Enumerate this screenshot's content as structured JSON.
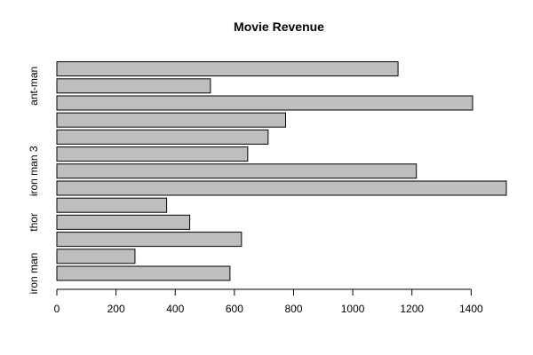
{
  "chart_data": {
    "type": "bar",
    "orientation": "horizontal",
    "title": "Movie Revenue",
    "xlabel": "",
    "ylabel": "",
    "xlim": [
      0,
      1519
    ],
    "x_ticks": [
      0,
      200,
      400,
      600,
      800,
      1000,
      1200,
      1400
    ],
    "bars": [
      {
        "label": "iron man",
        "value": 585
      },
      {
        "label": "",
        "value": 264
      },
      {
        "label": "",
        "value": 624
      },
      {
        "label": "thor",
        "value": 449
      },
      {
        "label": "",
        "value": 371
      },
      {
        "label": "",
        "value": 1519
      },
      {
        "label": "iron man 3",
        "value": 1215
      },
      {
        "label": "",
        "value": 645
      },
      {
        "label": "",
        "value": 714
      },
      {
        "label": "",
        "value": 773
      },
      {
        "label": "",
        "value": 1405
      },
      {
        "label": "ant-man",
        "value": 519
      },
      {
        "label": "",
        "value": 1153
      }
    ],
    "bar_fill": "#bebebe",
    "bar_stroke": "#000000",
    "grid": false,
    "legend": "none"
  }
}
